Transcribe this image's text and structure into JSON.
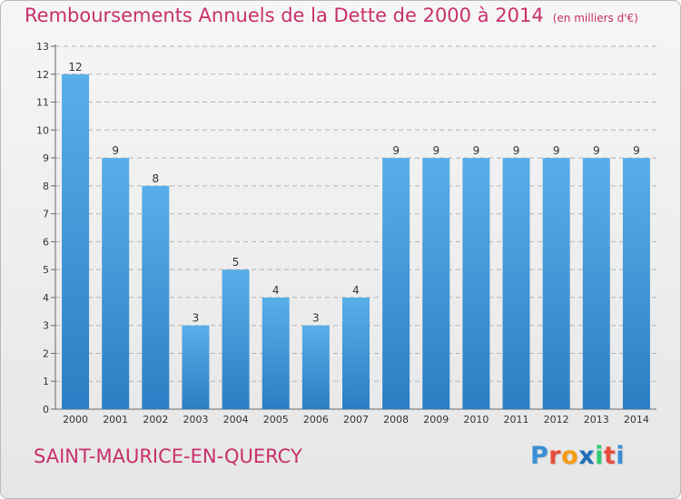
{
  "header": {
    "title": "Remboursements Annuels de la Dette de 2000 à 2014",
    "unit": "(en milliers d'€)"
  },
  "footer": {
    "commune": "SAINT-MAURICE-EN-QUERCY",
    "brand_letters": [
      "P",
      "r",
      "o",
      "x",
      "i",
      "t",
      "i"
    ],
    "brand_colors": [
      "#3a8fd6",
      "#e74c3c",
      "#f39c12",
      "#1e6fb8",
      "#2ecc71",
      "#e74c3c",
      "#3a8fd6"
    ]
  },
  "colors": {
    "title": "#c8306b",
    "bar_top": "#5aaee8",
    "bar_bottom": "#2a7fc4",
    "grid": "#b4b4b4",
    "axis_text": "#333333"
  },
  "chart_data": {
    "type": "bar",
    "title": "Remboursements Annuels de la Dette de 2000 à 2014",
    "subtitle": "(en milliers d'€)",
    "categories": [
      "2000",
      "2001",
      "2002",
      "2003",
      "2004",
      "2005",
      "2006",
      "2007",
      "2008",
      "2009",
      "2010",
      "2011",
      "2012",
      "2013",
      "2014"
    ],
    "values": [
      12,
      9,
      8,
      3,
      5,
      4,
      3,
      4,
      9,
      9,
      9,
      9,
      9,
      9,
      9
    ],
    "data_labels": [
      "12",
      "9",
      "8",
      "3",
      "5",
      "4",
      "3",
      "4",
      "9",
      "9",
      "9",
      "9",
      "9",
      "9",
      "9"
    ],
    "yticks": [
      "0",
      "1",
      "2",
      "3",
      "4",
      "5",
      "6",
      "7",
      "8",
      "9",
      "10",
      "11",
      "12",
      "13"
    ],
    "ylim": [
      0,
      13
    ],
    "grid": true,
    "legend": "none"
  }
}
